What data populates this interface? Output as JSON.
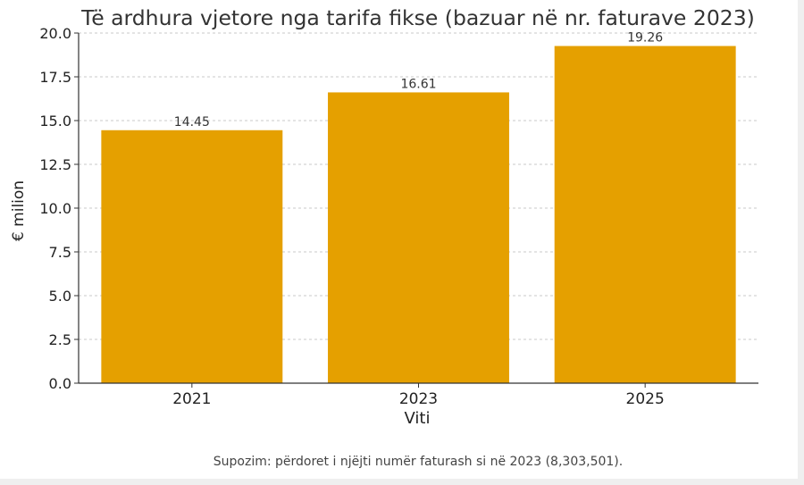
{
  "chart_data": {
    "type": "bar",
    "title": "Të ardhura vjetore nga tarifa fikse (bazuar në nr. faturave 2023)",
    "xlabel": "Viti",
    "ylabel": "€ milion",
    "categories": [
      "2021",
      "2023",
      "2025"
    ],
    "values": [
      14.45,
      16.61,
      19.26
    ],
    "value_labels": [
      "14.45",
      "16.61",
      "19.26"
    ],
    "ylim": [
      0,
      20
    ],
    "yticks": [
      0,
      2.5,
      5,
      7.5,
      10,
      12.5,
      15,
      17.5,
      20
    ],
    "ytick_labels": [
      "0.0",
      "2.5",
      "5.0",
      "7.5",
      "10.0",
      "12.5",
      "15.0",
      "17.5",
      "20.0"
    ],
    "grid": true,
    "bar_color": "#e5a000",
    "note": "Supozim: përdoret i njëjti numër faturash si në 2023 (8,303,501)."
  }
}
